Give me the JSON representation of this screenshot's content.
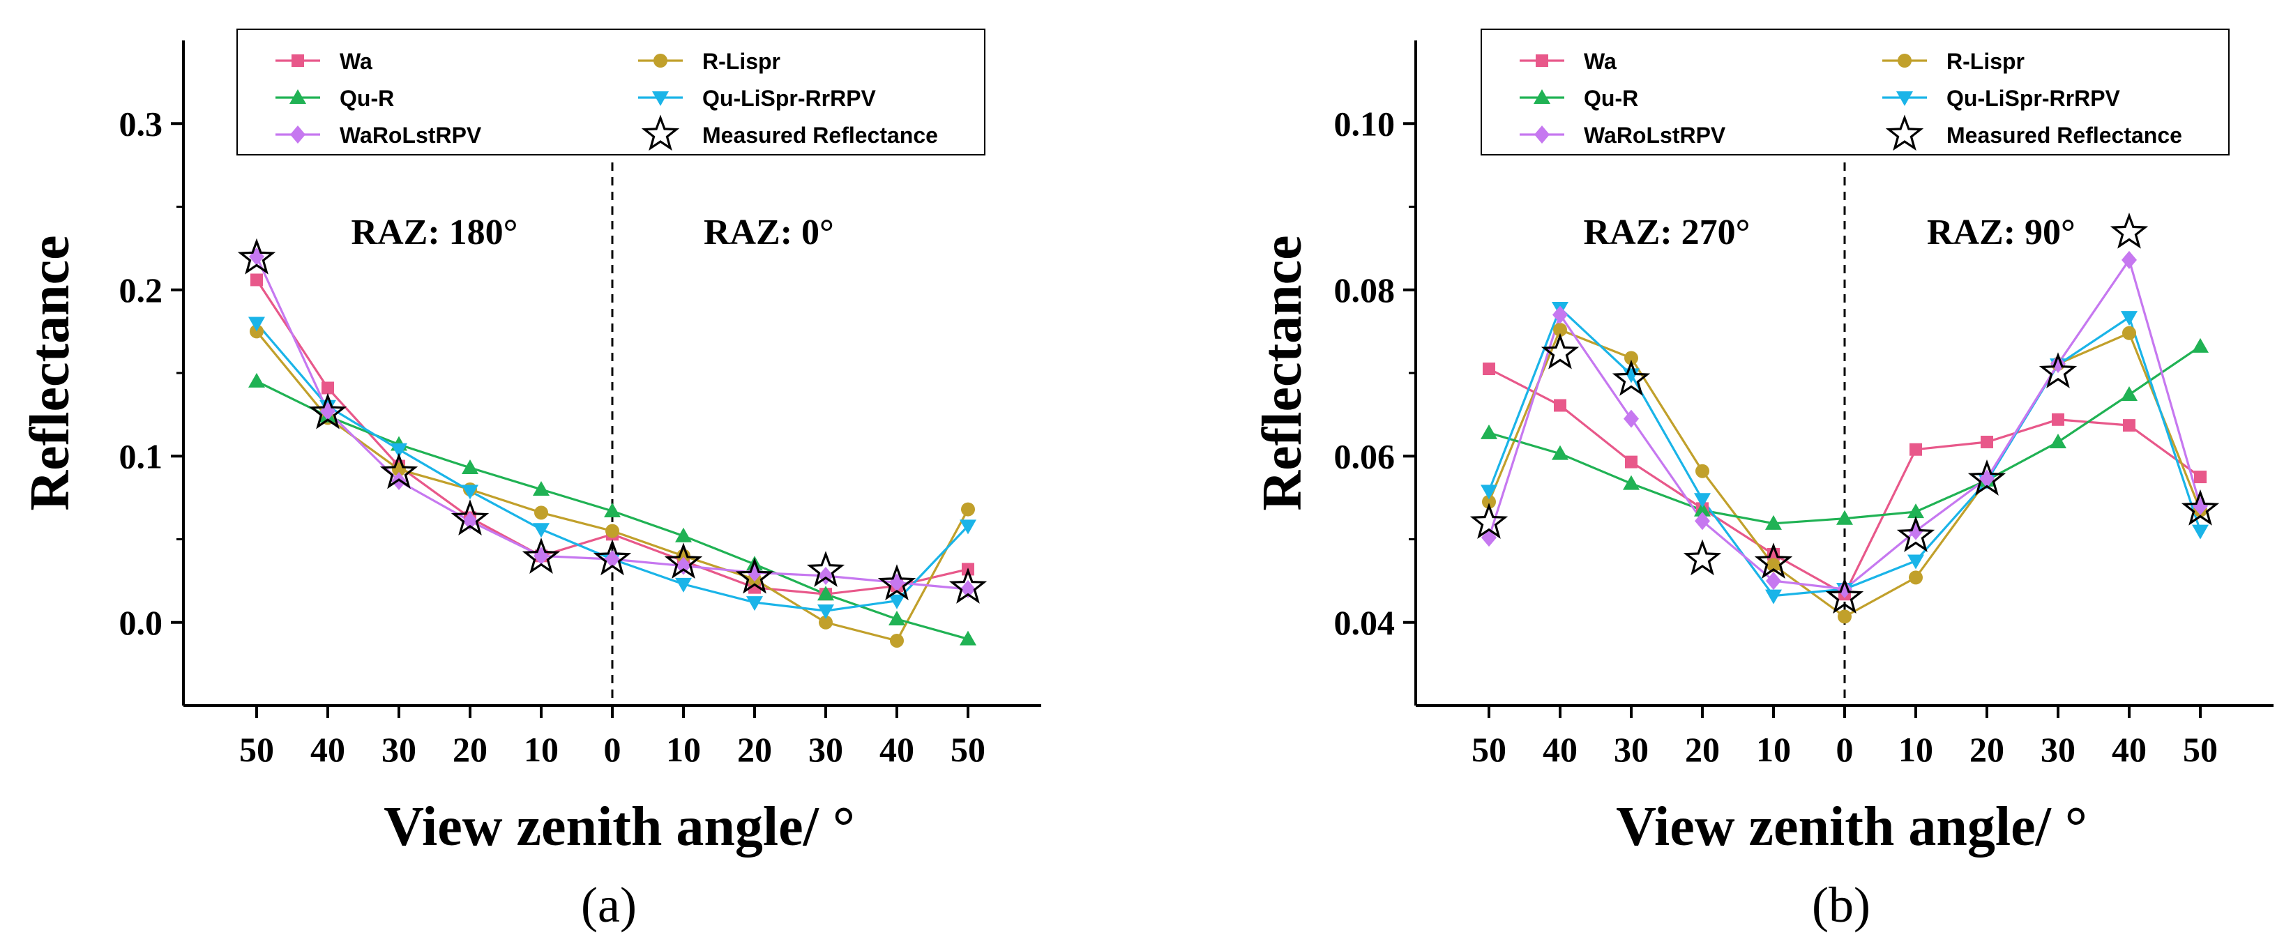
{
  "chart_data": [
    {
      "type": "line",
      "panel_label": "(a)",
      "xlabel": "View zenith angle/ °",
      "ylabel": "Reflectance",
      "x_tick_labels": [
        "50",
        "40",
        "30",
        "20",
        "10",
        "0",
        "10",
        "20",
        "30",
        "40",
        "50"
      ],
      "y_ticks": [
        "0.0",
        "0.1",
        "0.2",
        "0.3"
      ],
      "y_tick_values": [
        0.0,
        0.1,
        0.2,
        0.3
      ],
      "ylim": [
        -0.05,
        0.35
      ],
      "annotations": [
        {
          "text": "RAZ:  180°",
          "side": "left"
        },
        {
          "text": "RAZ:  0°",
          "side": "right"
        }
      ],
      "legend_position": "top",
      "series": [
        {
          "name": "Wa",
          "color": "#e8588a",
          "marker": "square",
          "values": [
            0.206,
            0.141,
            0.094,
            0.063,
            0.04,
            0.053,
            0.037,
            0.021,
            0.017,
            0.022,
            0.032
          ]
        },
        {
          "name": "R-Lispr",
          "color": "#c1a02b",
          "marker": "circle",
          "values": [
            0.175,
            0.123,
            0.092,
            0.08,
            0.066,
            0.055,
            0.04,
            0.026,
            0.0,
            -0.011,
            0.068
          ]
        },
        {
          "name": "Qu-R",
          "color": "#20b254",
          "marker": "triangle-up",
          "values": [
            0.145,
            0.124,
            0.107,
            0.093,
            0.08,
            0.067,
            0.052,
            0.035,
            0.017,
            0.002,
            -0.01
          ]
        },
        {
          "name": "Qu-LiSpr-RrRPV",
          "color": "#1ab4e8",
          "marker": "triangle-down",
          "values": [
            0.18,
            0.13,
            0.104,
            0.079,
            0.056,
            0.038,
            0.023,
            0.012,
            0.007,
            0.013,
            0.058
          ]
        },
        {
          "name": "WaRoLstRPV",
          "color": "#c678f0",
          "marker": "diamond",
          "values": [
            0.22,
            0.127,
            0.085,
            0.061,
            0.04,
            0.038,
            0.034,
            0.03,
            0.028,
            0.024,
            0.02
          ]
        },
        {
          "name": "Measured Reflectance",
          "color": "#000000",
          "marker": "star",
          "values": [
            0.219,
            0.126,
            0.09,
            0.062,
            0.039,
            0.038,
            0.036,
            0.027,
            0.031,
            0.023,
            0.021
          ]
        }
      ]
    },
    {
      "type": "line",
      "panel_label": "(b)",
      "xlabel": "View zenith angle/ °",
      "ylabel": "Reflectance",
      "x_tick_labels": [
        "50",
        "40",
        "30",
        "20",
        "10",
        "0",
        "10",
        "20",
        "30",
        "40",
        "50"
      ],
      "y_ticks": [
        "0.04",
        "0.06",
        "0.08",
        "0.10"
      ],
      "y_tick_values": [
        0.04,
        0.06,
        0.08,
        0.1
      ],
      "ylim": [
        0.03,
        0.11
      ],
      "annotations": [
        {
          "text": "RAZ:  270°",
          "side": "left"
        },
        {
          "text": "RAZ:  90°",
          "side": "right"
        }
      ],
      "legend_position": "top",
      "series": [
        {
          "name": "Wa",
          "color": "#e8588a",
          "marker": "square",
          "values": [
            0.0705,
            0.0661,
            0.0593,
            0.0537,
            0.0482,
            0.0434,
            0.0608,
            0.0617,
            0.0644,
            0.0637,
            0.0575
          ]
        },
        {
          "name": "R-Lispr",
          "color": "#c1a02b",
          "marker": "circle",
          "values": [
            0.0545,
            0.0752,
            0.0718,
            0.0582,
            0.0469,
            0.0407,
            0.0454,
            0.0571,
            0.0711,
            0.0748,
            0.0535
          ]
        },
        {
          "name": "Qu-R",
          "color": "#20b254",
          "marker": "triangle-up",
          "values": [
            0.0628,
            0.0603,
            0.0567,
            0.0535,
            0.0519,
            0.0525,
            0.0533,
            0.0571,
            0.0617,
            0.0674,
            0.0732
          ]
        },
        {
          "name": "Qu-LiSpr-RrRPV",
          "color": "#1ab4e8",
          "marker": "triangle-down",
          "values": [
            0.0558,
            0.0778,
            0.0698,
            0.0548,
            0.0432,
            0.044,
            0.0474,
            0.057,
            0.071,
            0.0767,
            0.051
          ]
        },
        {
          "name": "WaRoLstRPV",
          "color": "#c678f0",
          "marker": "diamond",
          "values": [
            0.0502,
            0.077,
            0.0645,
            0.0522,
            0.045,
            0.044,
            0.051,
            0.0573,
            0.0711,
            0.0836,
            0.054
          ]
        },
        {
          "name": "Measured Reflectance",
          "color": "#000000",
          "marker": "star",
          "values": [
            0.052,
            0.0724,
            0.0692,
            0.0476,
            0.0472,
            0.043,
            0.0504,
            0.0572,
            0.0701,
            0.0869,
            0.0536
          ]
        }
      ]
    }
  ]
}
